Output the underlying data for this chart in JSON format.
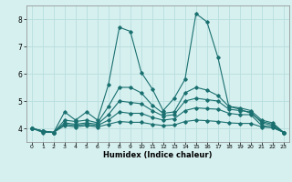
{
  "xlabel": "Humidex (Indice chaleur)",
  "background_color": "#d6f0ef",
  "grid_color": "#b8dede",
  "line_color": "#1a7070",
  "x_values": [
    0,
    1,
    2,
    3,
    4,
    5,
    6,
    7,
    8,
    9,
    10,
    11,
    12,
    13,
    14,
    15,
    16,
    17,
    18,
    19,
    20,
    21,
    22,
    23
  ],
  "series": [
    [
      4.0,
      3.85,
      3.85,
      4.6,
      4.3,
      4.6,
      4.3,
      5.6,
      7.7,
      7.55,
      6.05,
      5.45,
      4.65,
      5.1,
      5.8,
      8.2,
      7.9,
      6.6,
      4.8,
      4.7,
      4.55,
      4.25,
      4.15,
      3.85
    ],
    [
      4.0,
      3.9,
      3.85,
      4.3,
      4.25,
      4.3,
      4.2,
      4.8,
      5.5,
      5.5,
      5.3,
      4.85,
      4.55,
      4.6,
      5.3,
      5.5,
      5.4,
      5.2,
      4.8,
      4.75,
      4.65,
      4.3,
      4.2,
      3.85
    ],
    [
      4.0,
      3.9,
      3.85,
      4.2,
      4.15,
      4.2,
      4.15,
      4.5,
      5.0,
      4.95,
      4.9,
      4.65,
      4.45,
      4.5,
      5.0,
      5.1,
      5.05,
      5.0,
      4.7,
      4.65,
      4.6,
      4.2,
      4.1,
      3.85
    ],
    [
      4.0,
      3.9,
      3.85,
      4.15,
      4.1,
      4.15,
      4.1,
      4.3,
      4.6,
      4.55,
      4.55,
      4.4,
      4.3,
      4.35,
      4.65,
      4.75,
      4.72,
      4.7,
      4.55,
      4.5,
      4.5,
      4.1,
      4.05,
      3.85
    ],
    [
      4.0,
      3.9,
      3.85,
      4.1,
      4.05,
      4.1,
      4.05,
      4.15,
      4.25,
      4.22,
      4.22,
      4.15,
      4.1,
      4.12,
      4.25,
      4.3,
      4.28,
      4.25,
      4.2,
      4.18,
      4.18,
      4.05,
      4.02,
      3.85
    ]
  ],
  "ylim": [
    3.5,
    8.5
  ],
  "yticks": [
    4,
    5,
    6,
    7,
    8
  ],
  "xlim": [
    -0.5,
    23.5
  ],
  "xticks": [
    0,
    1,
    2,
    3,
    4,
    5,
    6,
    7,
    8,
    9,
    10,
    11,
    12,
    13,
    14,
    15,
    16,
    17,
    18,
    19,
    20,
    21,
    22,
    23
  ]
}
